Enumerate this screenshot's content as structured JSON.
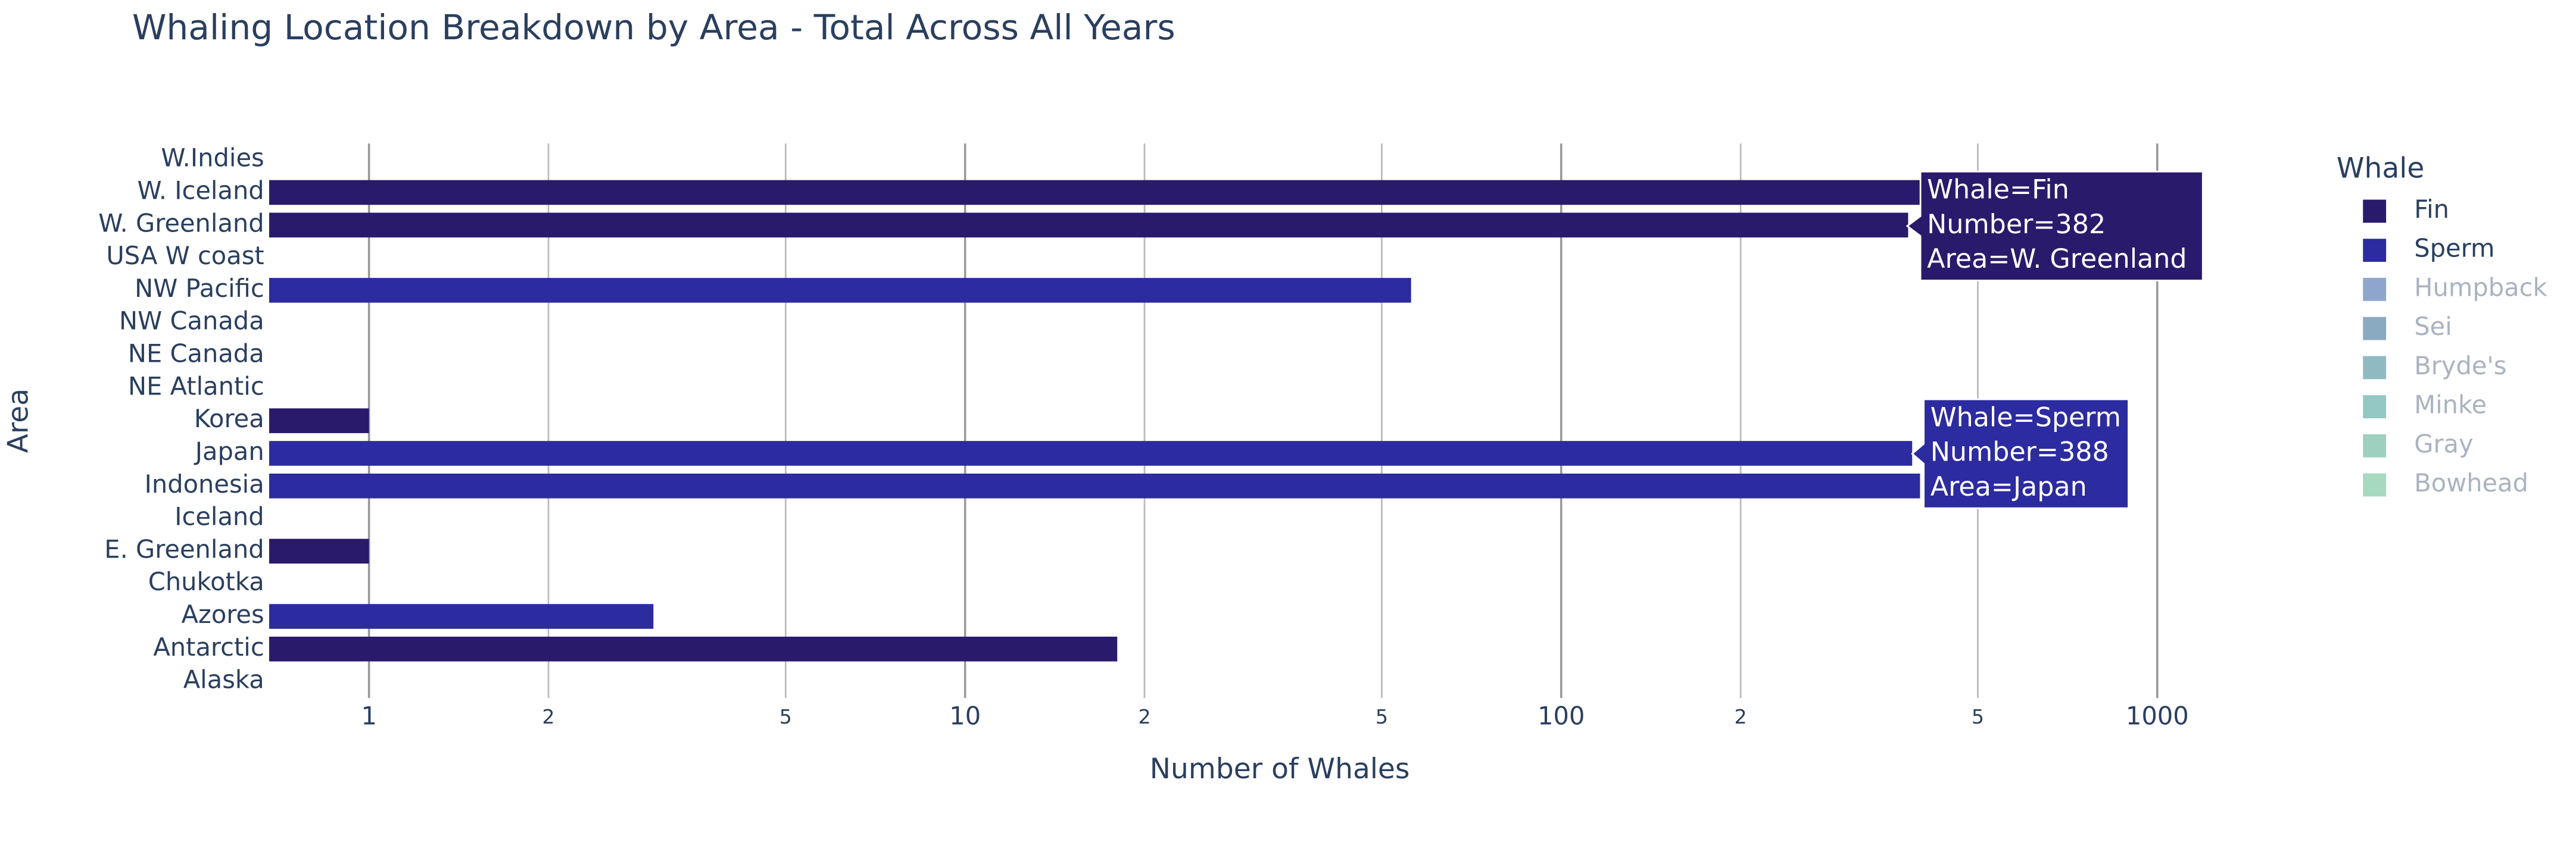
{
  "chart_data": {
    "type": "bar",
    "orientation": "horizontal",
    "title": "Whaling Location Breakdown by Area - Total Across All Years",
    "x_label": "Number of Whales",
    "y_label": "Area",
    "legend_title": "Whale",
    "x_log": true,
    "grid": true,
    "legend_position": "right",
    "categories": [
      "Alaska",
      "Antarctic",
      "Azores",
      "Chukotka",
      "E. Greenland",
      "Iceland",
      "Indonesia",
      "Japan",
      "Korea",
      "NE Atlantic",
      "NE Canada",
      "NW Canada",
      "NW Pacific",
      "USA W coast",
      "W. Greenland",
      "W. Iceland",
      "W.Indies"
    ],
    "series": [
      {
        "name": "Fin",
        "color": "#2a1a6b",
        "visible": true,
        "values": [
          null,
          18,
          null,
          null,
          1,
          null,
          null,
          null,
          1,
          null,
          null,
          null,
          null,
          null,
          382,
          400,
          null
        ]
      },
      {
        "name": "Sperm",
        "color": "#2c2ba0",
        "visible": true,
        "values": [
          null,
          null,
          3,
          null,
          null,
          null,
          400,
          388,
          null,
          null,
          null,
          null,
          56,
          null,
          null,
          null,
          null
        ]
      },
      {
        "name": "Humpback",
        "color": "#8ea6ce",
        "visible": false,
        "values": [
          null,
          null,
          null,
          null,
          null,
          null,
          null,
          null,
          null,
          null,
          null,
          null,
          null,
          null,
          null,
          null,
          null
        ]
      },
      {
        "name": "Sei",
        "color": "#8aaac2",
        "visible": false,
        "values": [
          null,
          null,
          null,
          null,
          null,
          null,
          null,
          null,
          null,
          null,
          null,
          null,
          null,
          null,
          null,
          null,
          null
        ]
      },
      {
        "name": "Bryde's",
        "color": "#8fbac2",
        "visible": false,
        "values": [
          null,
          null,
          null,
          null,
          null,
          null,
          null,
          null,
          null,
          null,
          null,
          null,
          null,
          null,
          null,
          null,
          null
        ]
      },
      {
        "name": "Minke",
        "color": "#93c8c4",
        "visible": false,
        "values": [
          null,
          null,
          null,
          null,
          null,
          null,
          null,
          null,
          null,
          null,
          null,
          null,
          null,
          null,
          null,
          null,
          null
        ]
      },
      {
        "name": "Gray",
        "color": "#9dd0bf",
        "visible": false,
        "values": [
          null,
          null,
          null,
          null,
          null,
          null,
          null,
          null,
          null,
          null,
          null,
          null,
          null,
          null,
          null,
          null,
          null
        ]
      },
      {
        "name": "Bowhead",
        "color": "#a7d8c0",
        "visible": false,
        "values": [
          null,
          null,
          null,
          null,
          null,
          null,
          null,
          null,
          null,
          null,
          null,
          null,
          null,
          null,
          null,
          null,
          null
        ]
      }
    ],
    "xlim": [
      0.68,
      1200
    ],
    "xticks": [
      1,
      2,
      5,
      10,
      {
        "value": 20,
        "label": "2"
      },
      {
        "value": 50,
        "label": "5"
      },
      100,
      {
        "value": 200,
        "label": "2"
      },
      {
        "value": 500,
        "label": "5"
      },
      1000
    ],
    "hover_labels": [
      {
        "color": "#2a1a6b",
        "lines": [
          "Whale=Fin",
          "Number=382",
          "Area=W. Greenland"
        ]
      },
      {
        "color": "#2c2ba0",
        "lines": [
          "Whale=Sperm",
          "Number=388",
          "Area=Japan"
        ]
      }
    ]
  }
}
